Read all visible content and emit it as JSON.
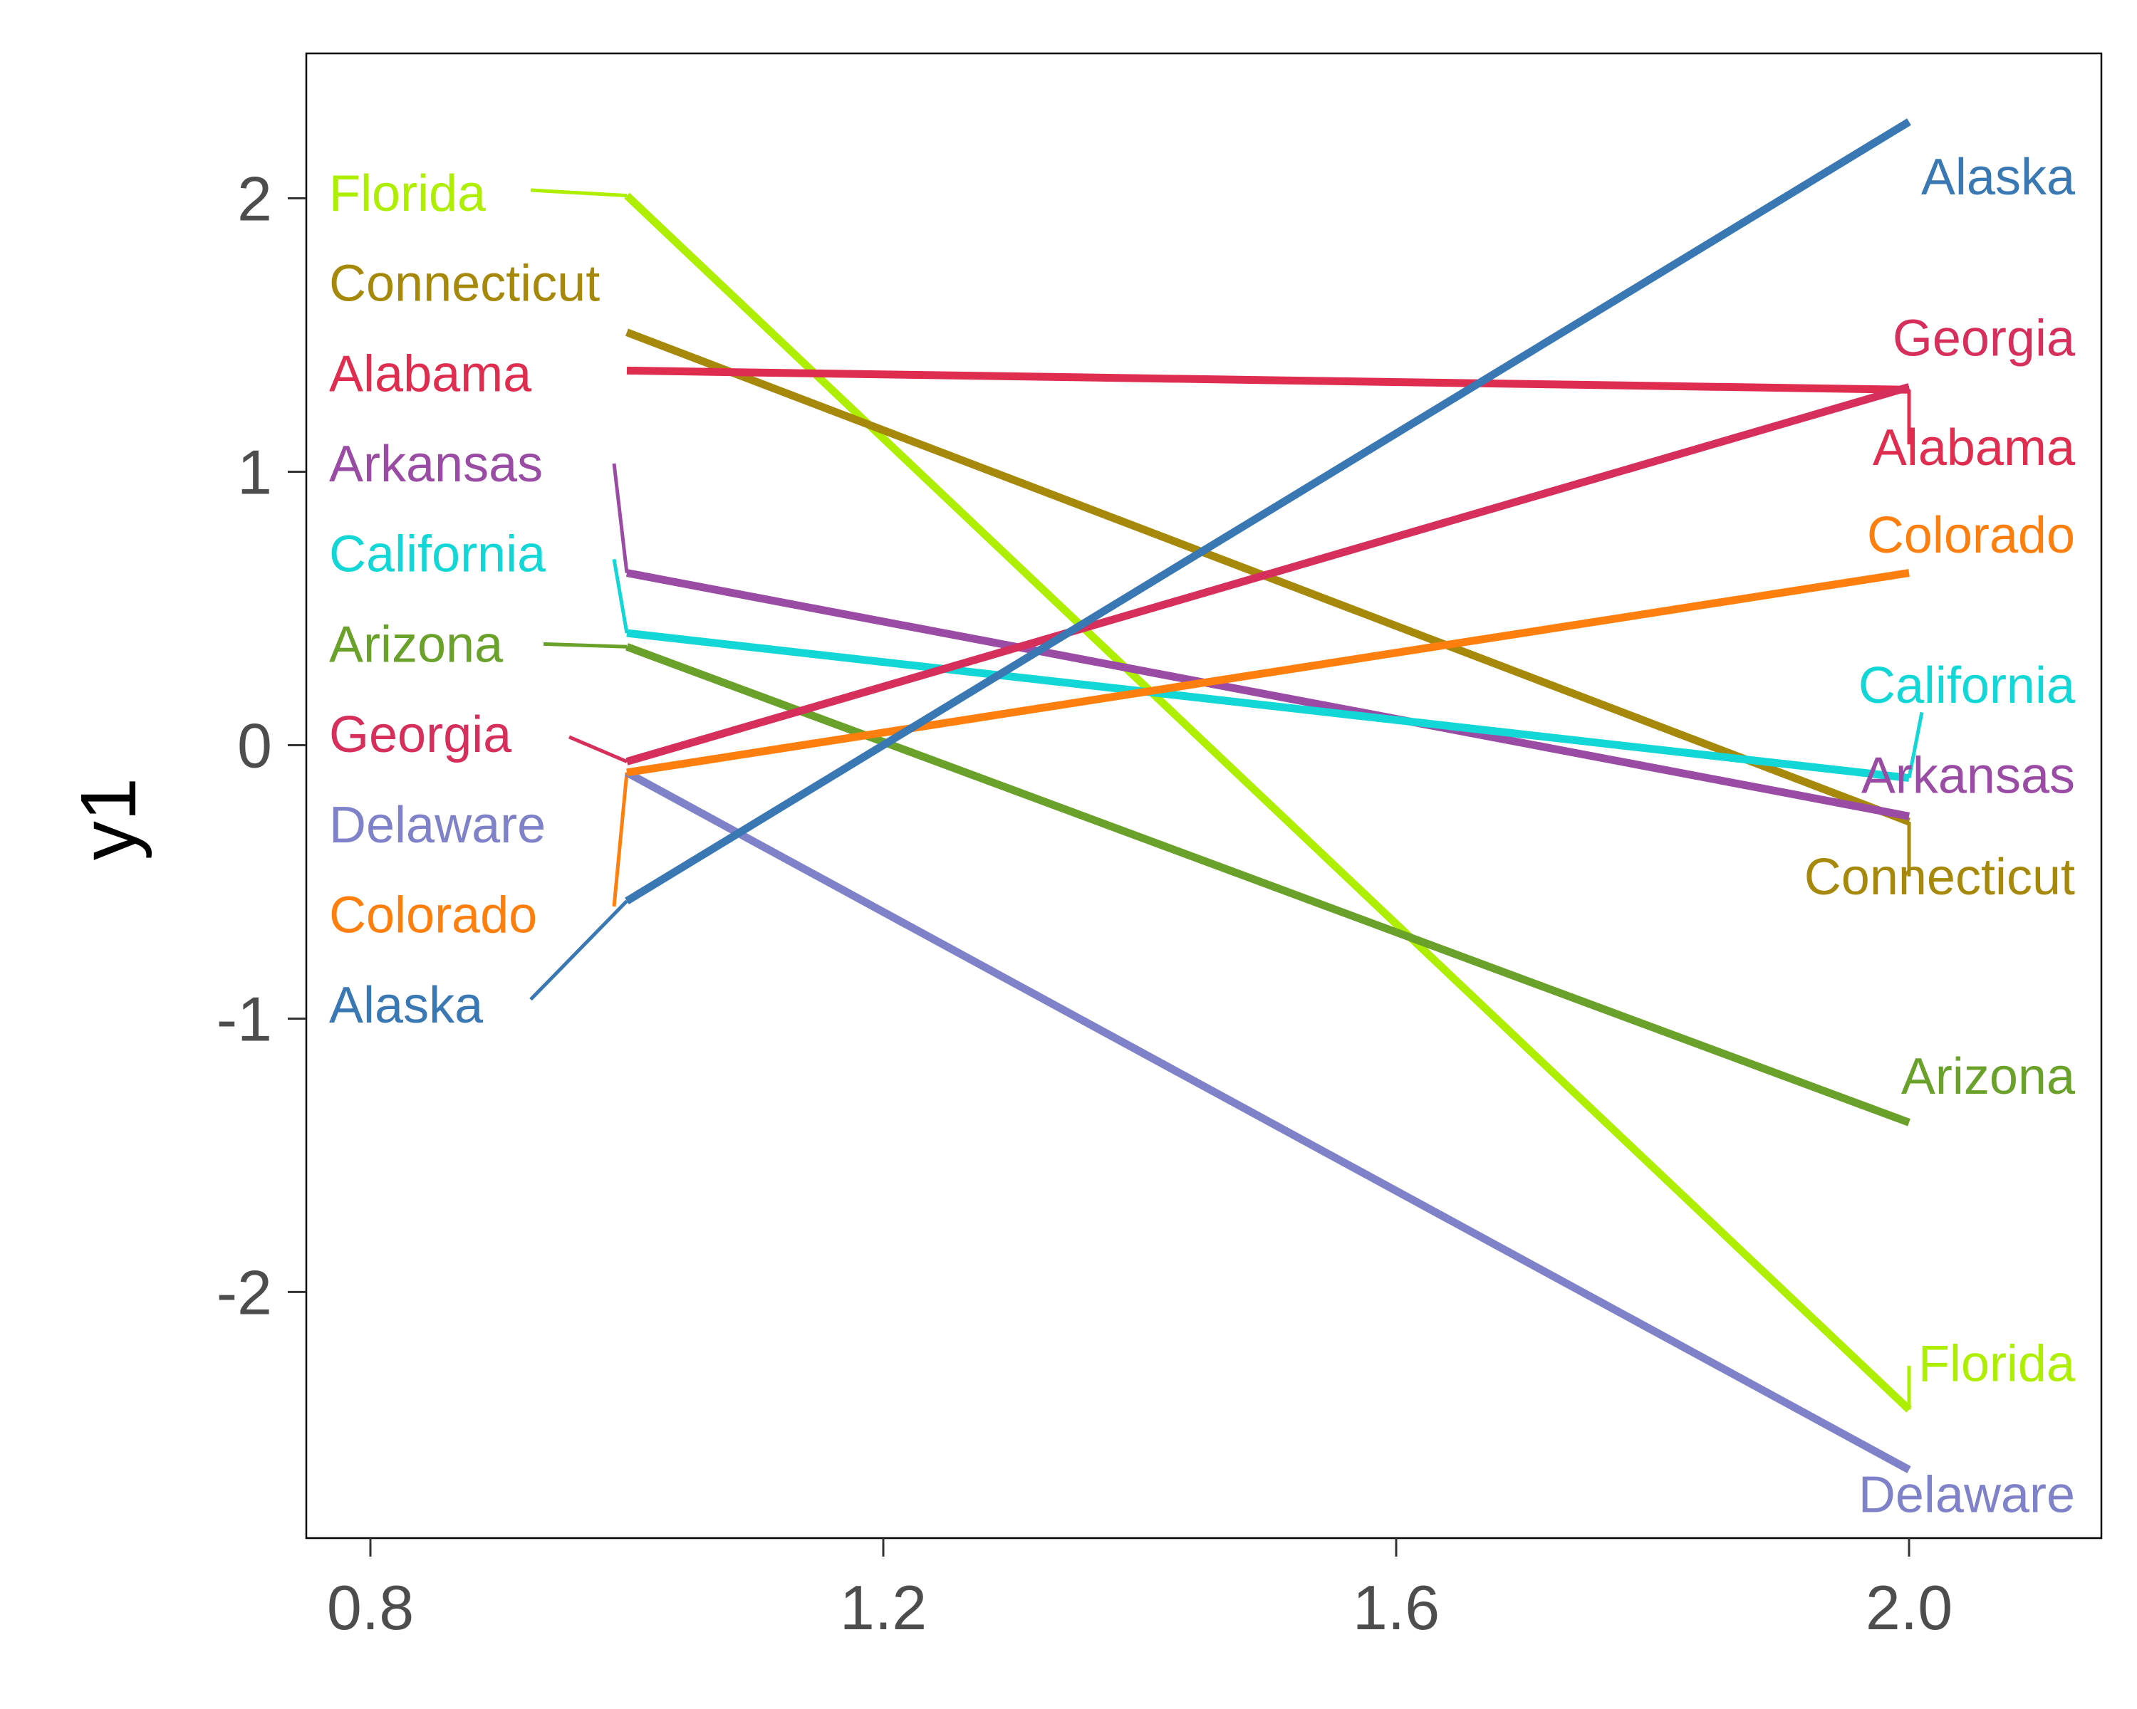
{
  "chart_data": {
    "type": "line",
    "title": "",
    "xlabel": "",
    "ylabel": "y1",
    "xlim": [
      0.75,
      2.15
    ],
    "ylim": [
      -2.9,
      2.53
    ],
    "x_ticks": [
      {
        "value": 0.8,
        "label": "0.8"
      },
      {
        "value": 1.2,
        "label": "1.2"
      },
      {
        "value": 1.6,
        "label": "1.6"
      },
      {
        "value": 2.0,
        "label": "2.0"
      }
    ],
    "y_ticks": [
      {
        "value": 2,
        "label": "2"
      },
      {
        "value": 1,
        "label": "1"
      },
      {
        "value": 0,
        "label": "0"
      },
      {
        "value": -1,
        "label": "-1"
      },
      {
        "value": -2,
        "label": "-2"
      }
    ],
    "grid": false,
    "legend": "none",
    "x": [
      1,
      2
    ],
    "series": [
      {
        "name": "Florida",
        "color": "#aeee00",
        "values": [
          2.01,
          -2.43
        ],
        "label_left": {
          "x": 0.925,
          "y": 2.03
        },
        "label_right": {
          "x": 2.0,
          "y": -2.27
        }
      },
      {
        "name": "Connecticut",
        "color": "#a6890b",
        "values": [
          1.51,
          -0.28
        ],
        "label_left": null,
        "label_right": {
          "x": 2.0,
          "y": -0.48
        }
      },
      {
        "name": "Alabama",
        "color": "#de2d4f",
        "values": [
          1.37,
          1.3
        ],
        "label_left": null,
        "label_right": {
          "x": 2.0,
          "y": 1.1
        }
      },
      {
        "name": "Arkansas",
        "color": "#9a4ca4",
        "values": [
          0.63,
          -0.26
        ],
        "label_left": {
          "x": 0.99,
          "y": 1.03
        },
        "label_right": null
      },
      {
        "name": "California",
        "color": "#13d6d6",
        "values": [
          0.41,
          -0.12
        ],
        "label_left": {
          "x": 0.99,
          "y": 0.68
        },
        "label_right": {
          "x": 2.01,
          "y": 0.12
        }
      },
      {
        "name": "Arizona",
        "color": "#6aa12a",
        "values": [
          0.36,
          -1.38
        ],
        "label_left": {
          "x": 0.935,
          "y": 0.37
        },
        "label_right": null
      },
      {
        "name": "Georgia",
        "color": "#d72f5b",
        "values": [
          -0.06,
          1.31
        ],
        "label_left": {
          "x": 0.955,
          "y": 0.03
        },
        "label_right": null
      },
      {
        "name": "Delaware",
        "color": "#7f82c9",
        "values": [
          -0.1,
          -2.65
        ],
        "label_left": null,
        "label_right": null
      },
      {
        "name": "Colorado",
        "color": "#ff7f0e",
        "values": [
          -0.1,
          0.63
        ],
        "label_left": {
          "x": 0.99,
          "y": -0.59
        },
        "label_right": null
      },
      {
        "name": "Alaska",
        "color": "#3a78b3",
        "values": [
          -0.57,
          2.28
        ],
        "label_left": {
          "x": 0.925,
          "y": -0.93
        },
        "label_right": null
      }
    ],
    "annotations_left": [
      {
        "text": "Florida",
        "y": 2.02,
        "color": "#aeee00"
      },
      {
        "text": "Connecticut",
        "y": 1.69,
        "color": "#a6890b"
      },
      {
        "text": "Alabama",
        "y": 1.36,
        "color": "#de2d4f"
      },
      {
        "text": "Arkansas",
        "y": 1.03,
        "color": "#9a4ca4"
      },
      {
        "text": "California",
        "y": 0.7,
        "color": "#13d6d6"
      },
      {
        "text": "Arizona",
        "y": 0.37,
        "color": "#6aa12a"
      },
      {
        "text": "Georgia",
        "y": 0.04,
        "color": "#d72f5b"
      },
      {
        "text": "Delaware",
        "y": -0.29,
        "color": "#7f82c9"
      },
      {
        "text": "Colorado",
        "y": -0.62,
        "color": "#ff7f0e"
      },
      {
        "text": "Alaska",
        "y": -0.95,
        "color": "#3a78b3"
      }
    ],
    "annotations_right": [
      {
        "text": "Alaska",
        "y": 2.08,
        "color": "#3a78b3"
      },
      {
        "text": "Georgia",
        "y": 1.49,
        "color": "#d72f5b"
      },
      {
        "text": "Alabama",
        "y": 1.09,
        "color": "#de2d4f"
      },
      {
        "text": "Colorado",
        "y": 0.77,
        "color": "#ff7f0e"
      },
      {
        "text": "California",
        "y": 0.22,
        "color": "#13d6d6"
      },
      {
        "text": "Arkansas",
        "y": -0.11,
        "color": "#9a4ca4"
      },
      {
        "text": "Connecticut",
        "y": -0.48,
        "color": "#a6890b"
      },
      {
        "text": "Arizona",
        "y": -1.21,
        "color": "#6aa12a"
      },
      {
        "text": "Florida",
        "y": -2.26,
        "color": "#aeee00"
      },
      {
        "text": "Delaware",
        "y": -2.74,
        "color": "#7f82c9"
      }
    ]
  }
}
